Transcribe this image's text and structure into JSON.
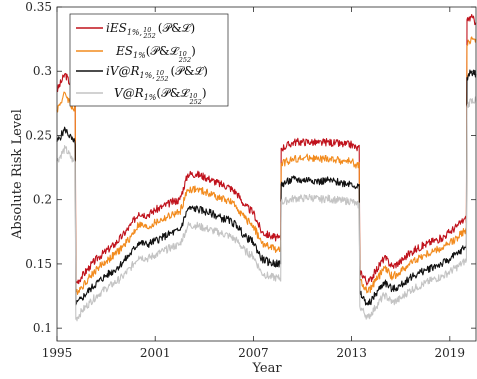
{
  "chart_data": {
    "type": "line",
    "title": "",
    "xlabel": "Year",
    "ylabel": "Absolute Risk Level",
    "xlim": [
      1995,
      2020.6
    ],
    "ylim": [
      0.09,
      0.35
    ],
    "x_ticks": [
      1995,
      2001,
      2007,
      2013,
      2019
    ],
    "x_tick_labels": [
      "1995",
      "2001",
      "2007",
      "2013",
      "2019"
    ],
    "y_ticks": [
      0.1,
      0.15,
      0.2,
      0.25,
      0.3,
      0.35
    ],
    "y_tick_labels": [
      "0.1",
      "0.15",
      "0.2",
      "0.25",
      "0.3",
      "0.35"
    ],
    "grid": false,
    "legend_position": "top-left",
    "x": [
      1995.0,
      1995.5,
      1996.0,
      1996.15,
      1996.5,
      1997.0,
      1997.5,
      1998.0,
      1998.5,
      1999.0,
      1999.5,
      2000.0,
      2000.5,
      2001.0,
      2001.5,
      2002.0,
      2002.5,
      2003.0,
      2003.5,
      2004.0,
      2004.5,
      2005.0,
      2005.5,
      2006.0,
      2006.5,
      2007.0,
      2007.5,
      2008.0,
      2008.5,
      2008.7,
      2009.5,
      2010.0,
      2010.5,
      2011.0,
      2011.5,
      2012.0,
      2012.5,
      2013.0,
      2013.3,
      2013.5,
      2014.0,
      2014.5,
      2015.0,
      2015.5,
      2016.0,
      2016.5,
      2017.0,
      2017.5,
      2018.0,
      2018.5,
      2019.0,
      2019.5,
      2019.9,
      2020.05,
      2020.3,
      2020.6
    ],
    "series": [
      {
        "name": "iES_{1%, 10/252}(P&L)",
        "color": "#c0121c",
        "values": [
          0.285,
          0.298,
          0.285,
          0.135,
          0.14,
          0.148,
          0.155,
          0.16,
          0.165,
          0.172,
          0.18,
          0.19,
          0.188,
          0.192,
          0.195,
          0.198,
          0.2,
          0.22,
          0.22,
          0.218,
          0.215,
          0.212,
          0.21,
          0.205,
          0.195,
          0.19,
          0.175,
          0.172,
          0.17,
          0.24,
          0.245,
          0.245,
          0.245,
          0.244,
          0.245,
          0.244,
          0.243,
          0.243,
          0.24,
          0.145,
          0.135,
          0.145,
          0.155,
          0.148,
          0.152,
          0.158,
          0.162,
          0.165,
          0.168,
          0.17,
          0.175,
          0.18,
          0.185,
          0.34,
          0.342,
          0.338
        ]
      },
      {
        "name": "ES_{1%}(P&L_{10/252})",
        "color": "#f28b1e",
        "values": [
          0.27,
          0.283,
          0.27,
          0.128,
          0.132,
          0.14,
          0.147,
          0.152,
          0.157,
          0.163,
          0.171,
          0.181,
          0.178,
          0.182,
          0.185,
          0.188,
          0.19,
          0.208,
          0.208,
          0.206,
          0.204,
          0.201,
          0.199,
          0.194,
          0.185,
          0.18,
          0.166,
          0.163,
          0.161,
          0.228,
          0.232,
          0.232,
          0.233,
          0.231,
          0.232,
          0.231,
          0.23,
          0.23,
          0.227,
          0.137,
          0.128,
          0.137,
          0.147,
          0.14,
          0.144,
          0.15,
          0.154,
          0.157,
          0.16,
          0.162,
          0.166,
          0.171,
          0.176,
          0.32,
          0.326,
          0.325
        ]
      },
      {
        "name": "iV@R_{1%, 10/252}(P&L)",
        "color": "#111111",
        "values": [
          0.245,
          0.255,
          0.245,
          0.118,
          0.123,
          0.13,
          0.136,
          0.141,
          0.145,
          0.151,
          0.158,
          0.167,
          0.165,
          0.168,
          0.171,
          0.174,
          0.176,
          0.193,
          0.193,
          0.191,
          0.189,
          0.186,
          0.184,
          0.18,
          0.171,
          0.167,
          0.154,
          0.151,
          0.15,
          0.212,
          0.216,
          0.215,
          0.216,
          0.214,
          0.215,
          0.214,
          0.213,
          0.213,
          0.21,
          0.127,
          0.118,
          0.127,
          0.136,
          0.13,
          0.133,
          0.139,
          0.142,
          0.145,
          0.148,
          0.15,
          0.154,
          0.158,
          0.163,
          0.295,
          0.3,
          0.298
        ]
      },
      {
        "name": "V@R_{1%}(P&L_{10/252})",
        "color": "#c4c4c4",
        "values": [
          0.23,
          0.24,
          0.23,
          0.107,
          0.113,
          0.12,
          0.126,
          0.131,
          0.135,
          0.14,
          0.147,
          0.156,
          0.154,
          0.157,
          0.16,
          0.163,
          0.165,
          0.18,
          0.18,
          0.178,
          0.176,
          0.174,
          0.172,
          0.168,
          0.16,
          0.156,
          0.143,
          0.14,
          0.139,
          0.198,
          0.201,
          0.201,
          0.202,
          0.2,
          0.201,
          0.2,
          0.199,
          0.199,
          0.196,
          0.117,
          0.108,
          0.117,
          0.126,
          0.12,
          0.123,
          0.129,
          0.132,
          0.135,
          0.138,
          0.14,
          0.144,
          0.148,
          0.152,
          0.272,
          0.278,
          0.277
        ]
      }
    ]
  }
}
